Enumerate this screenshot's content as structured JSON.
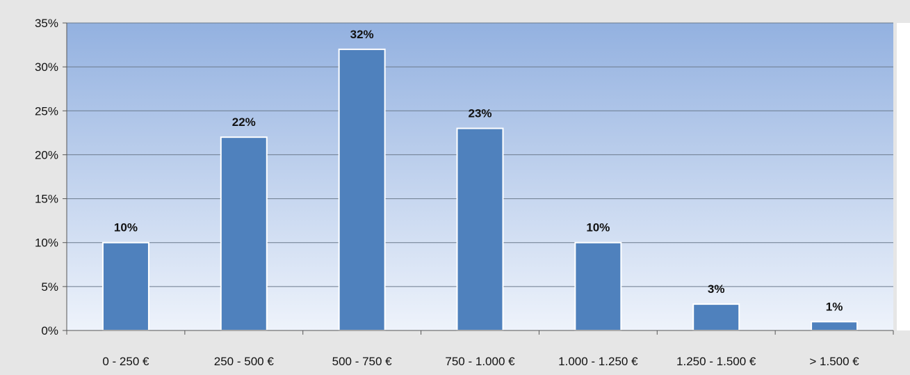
{
  "chart_data": {
    "type": "bar",
    "title": "",
    "xlabel": "",
    "ylabel": "",
    "categories": [
      "0 - 250 €",
      "250 - 500 €",
      "500 - 750 €",
      "750 - 1.000 €",
      "1.000 - 1.250 €",
      "1.250 - 1.500 €",
      "> 1.500 €"
    ],
    "values": [
      10,
      22,
      32,
      23,
      10,
      3,
      1
    ],
    "data_labels": [
      "10%",
      "22%",
      "32%",
      "23%",
      "10%",
      "3%",
      "1%"
    ],
    "ylim": [
      0,
      35
    ],
    "yticks": [
      0,
      5,
      10,
      15,
      20,
      25,
      30,
      35
    ],
    "ytick_labels": [
      "0%",
      "5%",
      "10%",
      "15%",
      "20%",
      "25%",
      "30%",
      "35%"
    ],
    "grid": true,
    "legend": "none",
    "colors": {
      "bar": "#4f81bd",
      "bar_stroke": "#ffffff",
      "plot_bg_top": "#93b1e0",
      "plot_bg_bottom": "#eef3fb",
      "page_bg": "#e6e6e6",
      "grid": "#6b7a8c"
    }
  }
}
